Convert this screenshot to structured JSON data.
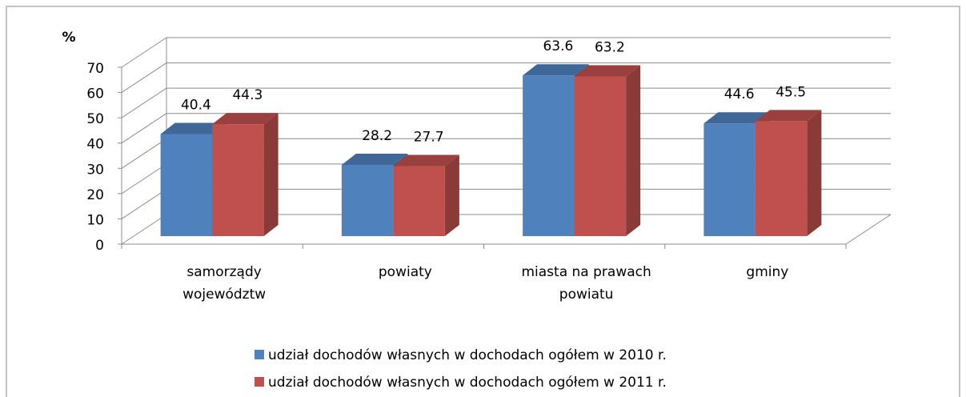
{
  "chart_data": {
    "type": "bar3d",
    "y_label": "%",
    "categories": [
      "samorządy województw",
      "powiaty",
      "miasta na prawach powiatu",
      "gminy"
    ],
    "series": [
      {
        "name": "udział dochodów własnych w dochodach ogółem w 2010 r.",
        "color": "#4f81bd",
        "values": [
          40.4,
          28.2,
          63.6,
          44.6
        ]
      },
      {
        "name": "udział dochodów własnych w dochodach ogółem w 2011 r.",
        "color": "#c0504d",
        "values": [
          44.3,
          27.7,
          63.2,
          45.5
        ]
      }
    ],
    "ylim": [
      0,
      70
    ],
    "yticks": [
      0,
      10,
      20,
      30,
      40,
      50,
      60,
      70
    ],
    "grid": true,
    "legend": "bottom"
  }
}
